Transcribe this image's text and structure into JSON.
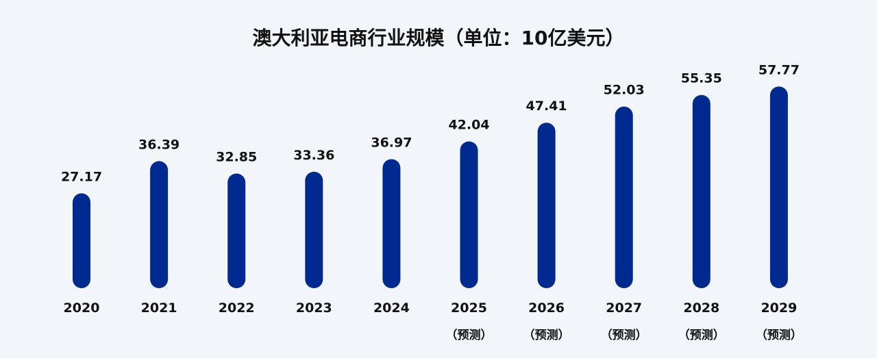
{
  "chart_data": {
    "type": "bar",
    "title": "澳大利亚电商行业规模（单位：10亿美元）",
    "categories": [
      "2020",
      "2021",
      "2022",
      "2023",
      "2024",
      "2025",
      "2026",
      "2027",
      "2028",
      "2029"
    ],
    "sublabels": [
      "",
      "",
      "",
      "",
      "",
      "（预测）",
      "（预测）",
      "（预测）",
      "（预测）",
      "（预测）"
    ],
    "values": [
      27.17,
      36.39,
      32.85,
      33.36,
      36.97,
      42.04,
      47.41,
      52.03,
      55.35,
      57.77
    ],
    "value_labels": [
      "27.17",
      "36.39",
      "32.85",
      "33.36",
      "36.97",
      "42.04",
      "47.41",
      "52.03",
      "55.35",
      "57.77"
    ],
    "xlabel": "",
    "ylabel": "",
    "ylim": [
      0,
      60
    ],
    "grid": false,
    "colors": {
      "bar": "#002a8f",
      "background": "#f2f6fa"
    }
  }
}
